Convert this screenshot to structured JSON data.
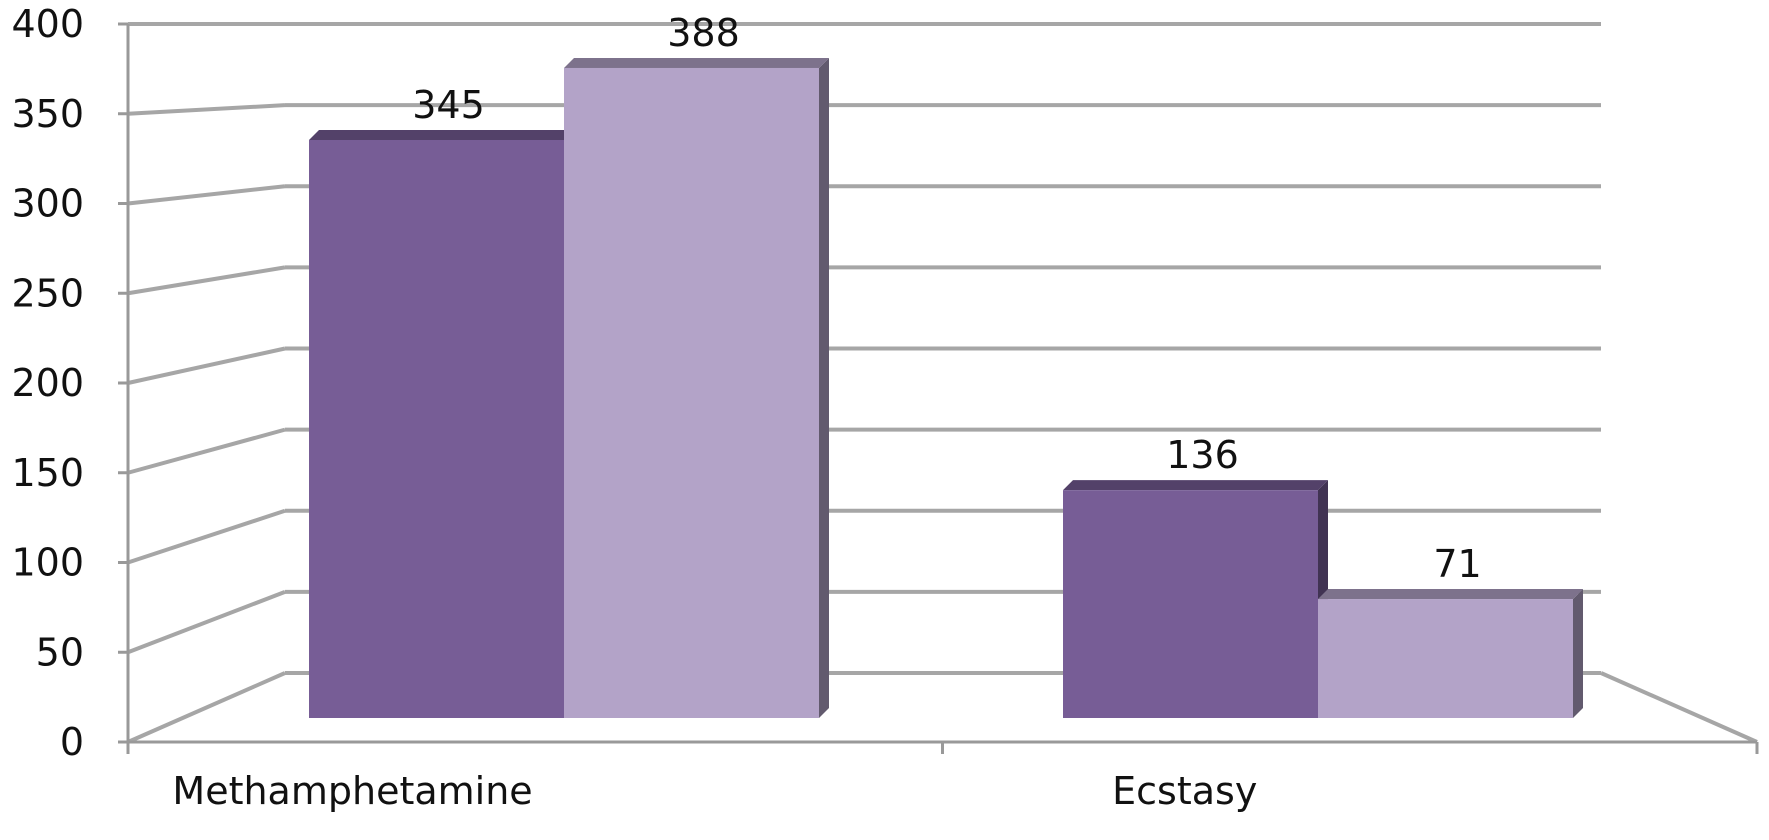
{
  "chart_data": {
    "type": "bar",
    "categories": [
      "Methamphetamine",
      "Ecstasy"
    ],
    "series": [
      {
        "values": [
          345,
          136
        ],
        "color": "#775d96"
      },
      {
        "values": [
          388,
          71
        ],
        "color": "#b3a3c8"
      }
    ],
    "data_labels": [
      [
        "345",
        "136"
      ],
      [
        "388",
        "71"
      ]
    ],
    "ylim": [
      0,
      400
    ],
    "yticks": [
      0,
      50,
      100,
      150,
      200,
      250,
      300,
      350,
      400
    ],
    "grid": true,
    "legend": "none",
    "title": "",
    "xlabel": "",
    "ylabel": "",
    "style": "3d",
    "gridline_color": "#a6a6a6"
  }
}
